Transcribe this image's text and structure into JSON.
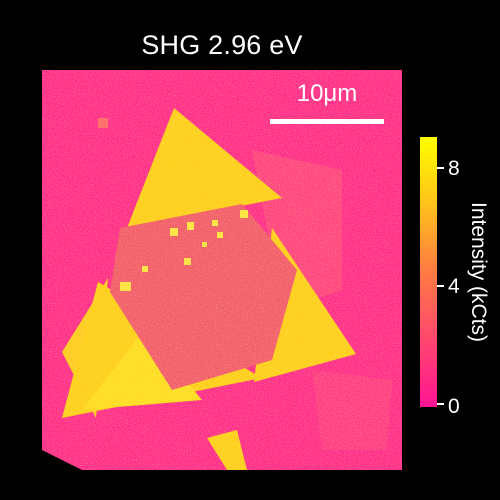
{
  "figure": {
    "title": "SHG 2.96 eV",
    "scale_bar_label": "10μm",
    "colorbar": {
      "label": "Intensity (kCts)",
      "ticks": [
        "0",
        "4",
        "8"
      ],
      "range": [
        0,
        9
      ],
      "colormap": [
        "#ff1493",
        "#ff4d6a",
        "#ff7f3f",
        "#ffc51a",
        "#ffff00"
      ]
    },
    "colors": {
      "background": "#000000",
      "substrate": "#ff2f8a",
      "flake": "#ffd21a",
      "overlap": "#f05e6a"
    }
  }
}
